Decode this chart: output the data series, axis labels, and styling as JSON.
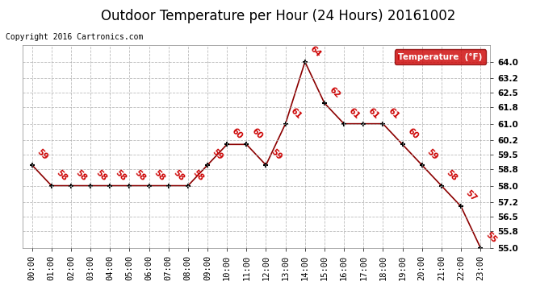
{
  "title": "Outdoor Temperature per Hour (24 Hours) 20161002",
  "copyright": "Copyright 2016 Cartronics.com",
  "legend_label": "Temperature  (°F)",
  "hours": [
    0,
    1,
    2,
    3,
    4,
    5,
    6,
    7,
    8,
    9,
    10,
    11,
    12,
    13,
    14,
    15,
    16,
    17,
    18,
    19,
    20,
    21,
    22,
    23
  ],
  "x_labels": [
    "00:00",
    "01:00",
    "02:00",
    "03:00",
    "04:00",
    "05:00",
    "06:00",
    "07:00",
    "08:00",
    "09:00",
    "10:00",
    "11:00",
    "12:00",
    "13:00",
    "14:00",
    "15:00",
    "16:00",
    "17:00",
    "18:00",
    "19:00",
    "20:00",
    "21:00",
    "22:00",
    "23:00"
  ],
  "temperatures": [
    59,
    58,
    58,
    58,
    58,
    58,
    58,
    58,
    58,
    59,
    60,
    60,
    59,
    61,
    64,
    62,
    61,
    61,
    61,
    60,
    59,
    58,
    57,
    55
  ],
  "ylim_min": 55.0,
  "ylim_max": 64.8,
  "yticks": [
    55.0,
    55.8,
    56.5,
    57.2,
    58.0,
    58.8,
    59.5,
    60.2,
    61.0,
    61.8,
    62.5,
    63.2,
    64.0
  ],
  "line_color": "#8B0000",
  "marker_color": "#000000",
  "label_color": "#cc0000",
  "grid_color": "#aaaaaa",
  "background_color": "#ffffff",
  "legend_bg": "#cc0000",
  "legend_text_color": "#ffffff",
  "title_fontsize": 12,
  "label_fontsize": 7.5,
  "tick_fontsize": 7.5,
  "copyright_fontsize": 7
}
